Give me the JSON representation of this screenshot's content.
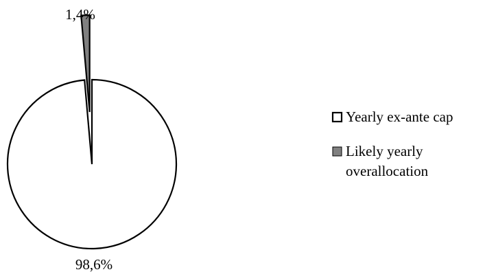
{
  "chart_data": {
    "type": "pie",
    "title": "",
    "slices": [
      {
        "label": "Yearly ex-ante cap",
        "value": 98.6,
        "value_label": "98,6%",
        "color": "#ffffff"
      },
      {
        "label": "Likely yearly overallocation",
        "value": 1.4,
        "value_label": "1,4%",
        "color": "#808080"
      }
    ],
    "legend": {
      "placement": "right",
      "entries": [
        {
          "lines": [
            "Yearly ex-ante cap"
          ],
          "color": "#ffffff"
        },
        {
          "lines": [
            "Likely yearly",
            "overallocation"
          ],
          "color": "#808080"
        }
      ]
    },
    "exploded_slice": "Likely yearly overallocation",
    "outline_color": "#000000"
  }
}
